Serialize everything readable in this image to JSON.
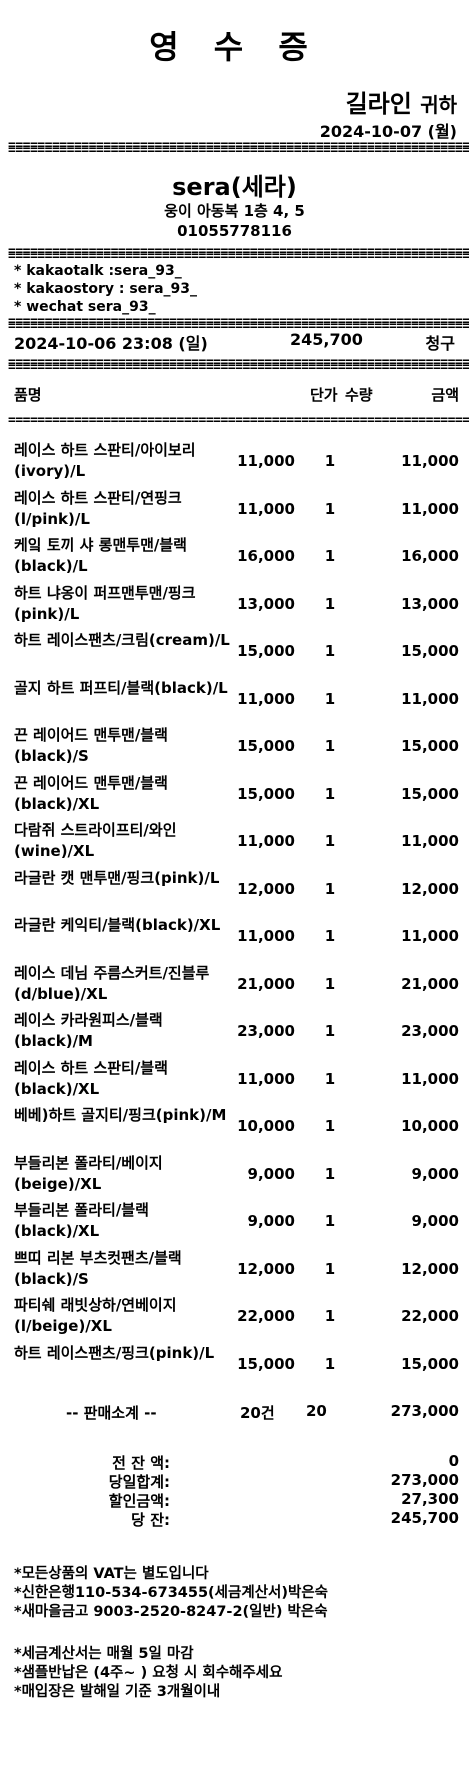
{
  "receipt_title": "영 수 증",
  "customer_name": "길라인",
  "customer_suffix": "귀하",
  "issue_date": "2024-10-07 (월)",
  "separator": "==========================================================================",
  "shop": {
    "name": "sera(세라)",
    "address": "웅이 아동복 1층 4, 5",
    "phone": "01055778116"
  },
  "contacts": [
    "* kakaotalk  :sera_93_",
    "* kakaostory : sera_93_",
    "* wechat   sera_93_"
  ],
  "summary": {
    "datetime": "2024-10-06 23:08 (일)",
    "amount": "245,700",
    "label": "청구"
  },
  "columns": {
    "name": "품명",
    "price": "단가",
    "qty": "수량",
    "amount": "금액"
  },
  "items": [
    {
      "name": "레이스 하트 스판티/아이보리(ivory)/L",
      "price": "11,000",
      "qty": "1",
      "amount": "11,000"
    },
    {
      "name": "레이스 하트 스판티/연핑크(l/pink)/L",
      "price": "11,000",
      "qty": "1",
      "amount": "11,000"
    },
    {
      "name": "케잌 토끼 샤 롱맨투맨/블랙(black)/L",
      "price": "16,000",
      "qty": "1",
      "amount": "16,000"
    },
    {
      "name": "하트 냐옹이 퍼프맨투맨/핑크(pink)/L",
      "price": "13,000",
      "qty": "1",
      "amount": "13,000"
    },
    {
      "name": "하트 레이스팬츠/크림(cream)/L",
      "price": "15,000",
      "qty": "1",
      "amount": "15,000"
    },
    {
      "name": "골지 하트 퍼프티/블랙(black)/L",
      "price": "11,000",
      "qty": "1",
      "amount": "11,000"
    },
    {
      "name": "끈 레이어드 맨투맨/블랙(black)/S",
      "price": "15,000",
      "qty": "1",
      "amount": "15,000"
    },
    {
      "name": "끈 레이어드 맨투맨/블랙(black)/XL",
      "price": "15,000",
      "qty": "1",
      "amount": "15,000"
    },
    {
      "name": "다람쥐 스트라이프티/와인(wine)/XL",
      "price": "11,000",
      "qty": "1",
      "amount": "11,000"
    },
    {
      "name": "라글란 캣 맨투맨/핑크(pink)/L",
      "price": "12,000",
      "qty": "1",
      "amount": "12,000"
    },
    {
      "name": "라글란 케익티/블랙(black)/XL",
      "price": "11,000",
      "qty": "1",
      "amount": "11,000"
    },
    {
      "name": "레이스 데님 주름스커트/진블루(d/blue)/XL",
      "price": "21,000",
      "qty": "1",
      "amount": "21,000"
    },
    {
      "name": "레이스 카라원피스/블랙(black)/M",
      "price": "23,000",
      "qty": "1",
      "amount": "23,000"
    },
    {
      "name": "레이스 하트 스판티/블랙(black)/XL",
      "price": "11,000",
      "qty": "1",
      "amount": "11,000"
    },
    {
      "name": "베베)하트 골지티/핑크(pink)/M",
      "price": "10,000",
      "qty": "1",
      "amount": "10,000"
    },
    {
      "name": "부들리본 폴라티/베이지(beige)/XL",
      "price": "9,000",
      "qty": "1",
      "amount": "9,000"
    },
    {
      "name": "부들리본 폴라티/블랙(black)/XL",
      "price": "9,000",
      "qty": "1",
      "amount": "9,000"
    },
    {
      "name": "쁘띠 리본 부츠컷팬츠/블랙(black)/S",
      "price": "12,000",
      "qty": "1",
      "amount": "12,000"
    },
    {
      "name": "파티쉐 래빗상하/연베이지(l/beige)/XL",
      "price": "22,000",
      "qty": "1",
      "amount": "22,000"
    },
    {
      "name": "하트 레이스팬츠/핑크(pink)/L",
      "price": "15,000",
      "qty": "1",
      "amount": "15,000"
    }
  ],
  "subtotal": {
    "label": "-- 판매소계 --",
    "count": "20건",
    "qty": "20",
    "amount": "273,000"
  },
  "totals": [
    {
      "label": "전 잔 액:",
      "value": "0"
    },
    {
      "label": "당일합계:",
      "value": "273,000"
    },
    {
      "label": "할인금액:",
      "value": "27,300"
    },
    {
      "label": "당 잔:",
      "value": "245,700"
    }
  ],
  "notes_1": [
    "*모든상품의 VAT는 별도입니다",
    "*신한은행110-534-673455(세금계산서)박은숙",
    "*새마을금고 9003-2520-8247-2(일반) 박은숙"
  ],
  "notes_2": [
    "*세금계산서는 매월 5일 마감",
    "*샘플반납은 (4주~ ) 요청 시 회수해주세요",
    "*매입장은 발해일 기준 3개월이내"
  ]
}
